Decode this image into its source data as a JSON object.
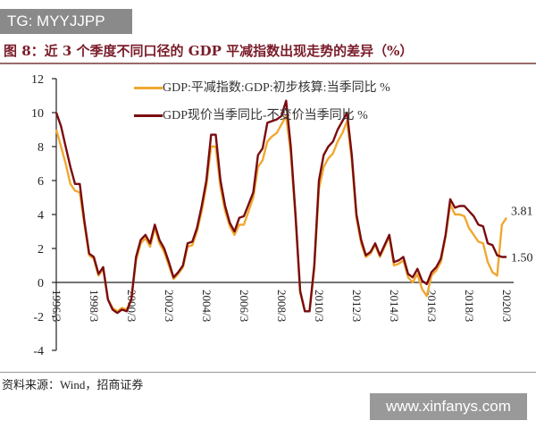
{
  "watermark_top": "TG: MYYJJPP",
  "watermark_bottom": "www.xinfanys.com",
  "title": "图 8：近 3 个季度不同口径的 GDP 平减指数出现走势的差异（%）",
  "source": "资料来源：Wind，招商证券",
  "chart_data": {
    "type": "line",
    "x_start": "1996Q1",
    "frequency": "quarterly",
    "xticks": [
      "1996/3",
      "1998/3",
      "2000/3",
      "2002/3",
      "2004/3",
      "2006/3",
      "2008/3",
      "2010/3",
      "2012/3",
      "2014/3",
      "2016/3",
      "2018/3",
      "2020/3"
    ],
    "yticks": [
      "-4",
      "-2",
      "0",
      "2",
      "4",
      "6",
      "8",
      "10",
      "12"
    ],
    "ylim": [
      -4,
      12
    ],
    "grid": false,
    "legend_placement": "top",
    "colors": {
      "deflator": "#f0a830",
      "ratio": "#7a0c10"
    },
    "series": [
      {
        "name": "GDP:平减指数:GDP:初步核算:当季同比 %",
        "end_label": "3.81",
        "values": [
          9.0,
          8.0,
          7.0,
          5.8,
          5.4,
          5.3,
          3.4,
          1.6,
          1.4,
          0.4,
          0.8,
          -1.0,
          -1.5,
          -1.7,
          -1.5,
          -1.6,
          -1.0,
          1.3,
          2.3,
          2.6,
          2.1,
          3.2,
          2.3,
          1.8,
          1.0,
          0.2,
          0.5,
          0.9,
          2.1,
          2.2,
          3.0,
          4.2,
          5.7,
          8.0,
          8.0,
          5.6,
          4.2,
          3.3,
          2.8,
          3.4,
          3.4,
          4.2,
          5.0,
          6.8,
          7.2,
          8.3,
          8.6,
          8.8,
          9.3,
          9.8,
          7.6,
          3.8,
          -0.6,
          -1.7,
          -1.7,
          0.8,
          5.5,
          6.8,
          7.3,
          7.6,
          8.3,
          8.8,
          9.5,
          7.2,
          3.8,
          2.3,
          1.5,
          1.7,
          2.2,
          1.5,
          2.1,
          2.7,
          1.0,
          1.1,
          1.3,
          0.3,
          0.0,
          0.5,
          -0.4,
          -0.8,
          0.4,
          0.7,
          1.2,
          2.7,
          4.6,
          4.0,
          4.0,
          3.9,
          3.2,
          2.8,
          2.4,
          2.3,
          1.2,
          0.6,
          0.4,
          3.4,
          3.81
        ]
      },
      {
        "name": "GDP现价当季同比-不变价当季同比 %",
        "end_label": "1.50",
        "values": [
          10.0,
          9.2,
          8.0,
          6.8,
          5.8,
          5.8,
          3.6,
          1.7,
          1.5,
          0.5,
          0.9,
          -1.0,
          -1.6,
          -1.8,
          -1.6,
          -1.7,
          -1.0,
          1.5,
          2.5,
          2.8,
          2.3,
          3.4,
          2.5,
          2.0,
          1.2,
          0.3,
          0.6,
          1.0,
          2.3,
          2.4,
          3.2,
          4.5,
          6.0,
          8.7,
          8.7,
          6.0,
          4.5,
          3.5,
          3.0,
          3.8,
          3.9,
          4.6,
          5.3,
          7.5,
          7.9,
          9.4,
          9.5,
          9.6,
          9.8,
          10.7,
          8.0,
          4.0,
          -0.5,
          -1.7,
          -1.7,
          1.0,
          6.0,
          7.5,
          8.0,
          8.3,
          9.0,
          9.5,
          10.0,
          7.5,
          4.0,
          2.5,
          1.6,
          1.8,
          2.3,
          1.6,
          2.2,
          2.8,
          1.2,
          1.3,
          1.5,
          0.5,
          0.3,
          0.8,
          0.1,
          -0.1,
          0.6,
          0.9,
          1.4,
          2.8,
          4.9,
          4.4,
          4.5,
          4.5,
          4.2,
          3.9,
          3.4,
          3.3,
          2.3,
          2.2,
          1.6,
          1.5,
          1.5
        ]
      }
    ]
  }
}
